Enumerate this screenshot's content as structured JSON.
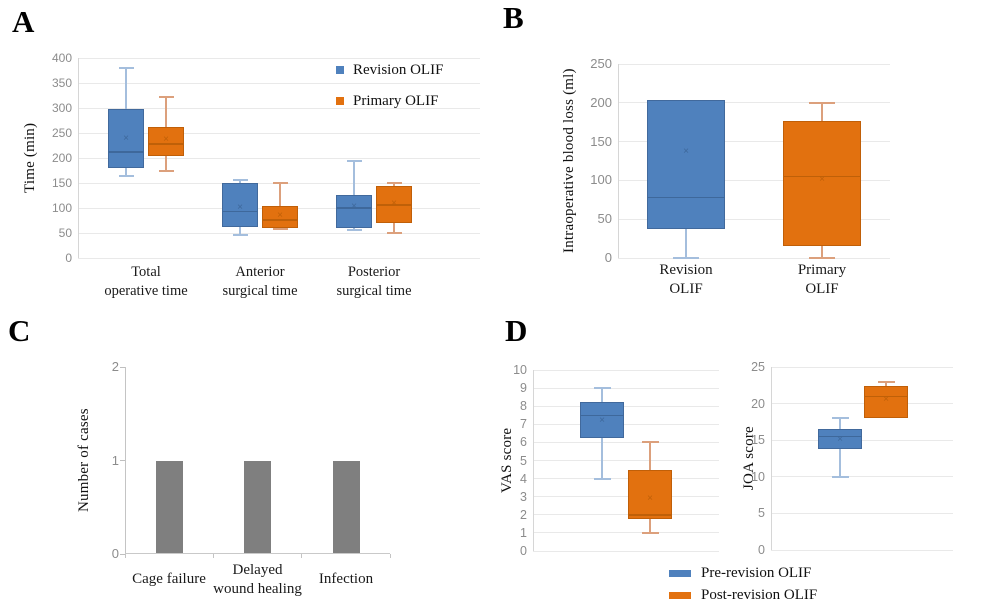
{
  "figure": {
    "panels": [
      {
        "letter": "A"
      },
      {
        "letter": "B"
      },
      {
        "letter": "C"
      },
      {
        "letter": "D"
      }
    ]
  },
  "colors": {
    "revision_blue": "#4f81bd",
    "blue_border": "#41699c",
    "blue_median": "#3e689b",
    "blue_whisker": "#a4bedd",
    "primary_orange": "#e2710f",
    "orange_border": "#c05f08",
    "orange_median": "#bf6008",
    "orange_whisker": "#dca07c",
    "bar_gray": "#7f7f7f",
    "gridline": "#e9e9e9",
    "axis_line": "#d6d6d6",
    "tick_text": "#8c8c8c",
    "label_text": "#1a1a1a"
  },
  "chart_data": [
    {
      "id": "A",
      "type": "grouped_boxplot",
      "ylabel": "Time (min)",
      "ylim": [
        0,
        400
      ],
      "yticks": [
        0,
        50,
        100,
        150,
        200,
        250,
        300,
        350,
        400
      ],
      "categories": [
        "Total\noperative time",
        "Anterior\nsurgical time",
        "Posterior\nsurgical time"
      ],
      "legend": {
        "position": "top-right",
        "entries": [
          "Revision OLIF",
          "Primary OLIF"
        ]
      },
      "series": [
        {
          "name": "Revision OLIF",
          "color_key": "blue",
          "boxes": [
            {
              "min": 165,
              "q1": 180,
              "median": 212,
              "q3": 298,
              "max": 380,
              "mean": 238
            },
            {
              "min": 47,
              "q1": 62,
              "median": 93,
              "q3": 150,
              "max": 156,
              "mean": 101
            },
            {
              "min": 56,
              "q1": 61,
              "median": 100,
              "q3": 127,
              "max": 195,
              "mean": 103
            }
          ]
        },
        {
          "name": "Primary OLIF",
          "color_key": "orange",
          "boxes": [
            {
              "min": 174,
              "q1": 204,
              "median": 228,
              "q3": 263,
              "max": 322,
              "mean": 236
            },
            {
              "min": 58,
              "q1": 61,
              "median": 76,
              "q3": 104,
              "max": 151,
              "mean": 85
            },
            {
              "min": 51,
              "q1": 71,
              "median": 106,
              "q3": 145,
              "max": 150,
              "mean": 108
            }
          ]
        }
      ]
    },
    {
      "id": "B",
      "type": "boxplot",
      "ylabel": "Intraoperative blood loss (ml)",
      "ylim": [
        0,
        250
      ],
      "yticks": [
        0,
        50,
        100,
        150,
        200,
        250
      ],
      "categories": [
        "Revision\nOLIF",
        "Primary\nOLIF"
      ],
      "boxes": [
        {
          "name": "Revision OLIF",
          "color_key": "blue",
          "min": 0,
          "q1": 38,
          "median": 78,
          "q3": 203,
          "max": 203,
          "mean": 137
        },
        {
          "name": "Primary OLIF",
          "color_key": "orange",
          "min": 0,
          "q1": 15,
          "median": 105,
          "q3": 177,
          "max": 200,
          "mean": 100
        }
      ]
    },
    {
      "id": "C",
      "type": "bar",
      "ylabel": "Number of cases",
      "ylim": [
        0,
        2
      ],
      "yticks": [
        0,
        1,
        2
      ],
      "categories": [
        "Cage failure",
        "Delayed\nwound healing",
        "Infection"
      ],
      "values": [
        1,
        1,
        1
      ]
    },
    {
      "id": "D",
      "type": "boxplot_pair",
      "legend": {
        "position": "bottom",
        "entries": [
          "Pre-revision OLIF",
          "Post-revision OLIF"
        ]
      },
      "charts": [
        {
          "ylabel": "VAS score",
          "ylim": [
            0,
            10
          ],
          "yticks": [
            0,
            1,
            2,
            3,
            4,
            5,
            6,
            7,
            8,
            9,
            10
          ],
          "boxes": [
            {
              "name": "Pre-revision OLIF",
              "color_key": "blue",
              "min": 4,
              "q1": 6.25,
              "median": 7.5,
              "q3": 8.25,
              "max": 9,
              "mean": 7.2
            },
            {
              "name": "Post-revision OLIF",
              "color_key": "orange",
              "min": 1,
              "q1": 1.75,
              "median": 2,
              "q3": 4.5,
              "max": 6,
              "mean": 2.85
            }
          ]
        },
        {
          "ylabel": "JOA score",
          "ylim": [
            0,
            25
          ],
          "yticks": [
            0,
            5,
            10,
            15,
            20,
            25
          ],
          "boxes": [
            {
              "name": "Pre-revision OLIF",
              "color_key": "blue",
              "min": 10,
              "q1": 13.75,
              "median": 15.5,
              "q3": 16.5,
              "max": 18,
              "mean": 15
            },
            {
              "name": "Post-revision OLIF",
              "color_key": "orange",
              "min": 18,
              "q1": 18,
              "median": 21,
              "q3": 22.4,
              "max": 23,
              "mean": 20.5
            }
          ]
        }
      ]
    }
  ]
}
